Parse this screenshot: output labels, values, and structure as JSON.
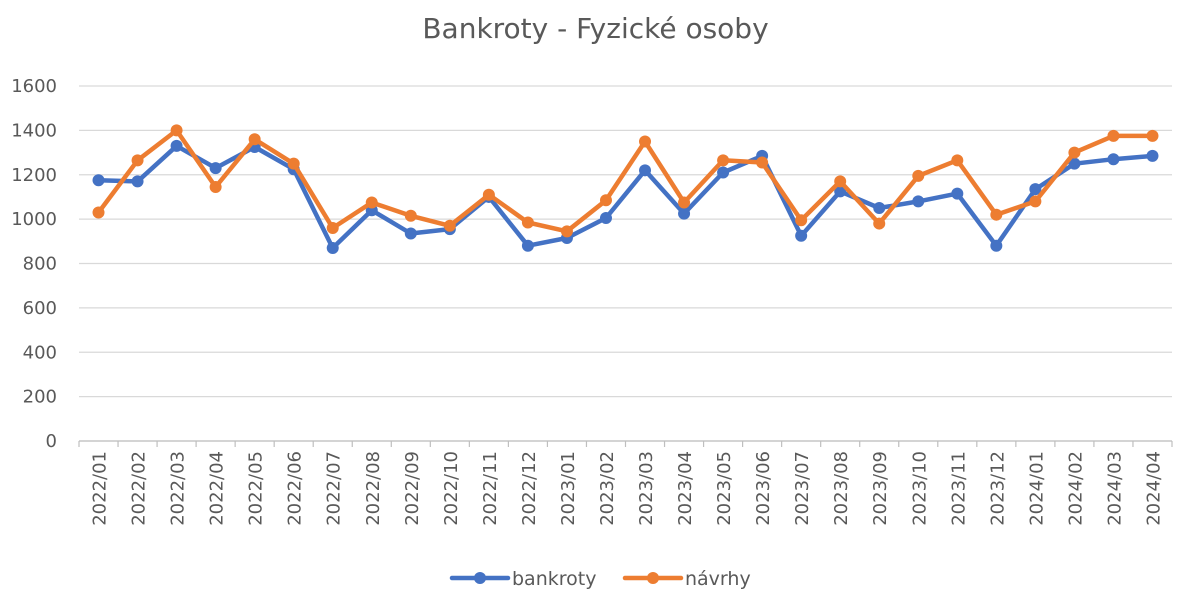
{
  "chart_data": {
    "type": "line",
    "title": "Bankroty - Fyzické osoby",
    "xlabel": "",
    "ylabel": "",
    "ylim": [
      0,
      1600
    ],
    "yticks": [
      0,
      200,
      400,
      600,
      800,
      1000,
      1200,
      1400,
      1600
    ],
    "grid": true,
    "legend_position": "bottom",
    "categories": [
      "2022/01",
      "2022/02",
      "2022/03",
      "2022/04",
      "2022/05",
      "2022/06",
      "2022/07",
      "2022/08",
      "2022/09",
      "2022/10",
      "2022/11",
      "2022/12",
      "2023/01",
      "2023/02",
      "2023/03",
      "2023/04",
      "2023/05",
      "2023/06",
      "2023/07",
      "2023/08",
      "2023/09",
      "2023/10",
      "2023/11",
      "2023/12",
      "2024/01",
      "2024/02",
      "2024/03",
      "2024/04"
    ],
    "series": [
      {
        "name": "bankroty",
        "color": "#4472C4",
        "values": [
          1175,
          1170,
          1330,
          1230,
          1325,
          1225,
          870,
          1040,
          935,
          955,
          1100,
          880,
          915,
          1005,
          1220,
          1025,
          1210,
          1285,
          925,
          1125,
          1050,
          1080,
          1115,
          880,
          1135,
          1250,
          1270,
          1285
        ]
      },
      {
        "name": "návrhy",
        "color": "#ED7D31",
        "values": [
          1030,
          1265,
          1400,
          1145,
          1360,
          1250,
          960,
          1075,
          1015,
          970,
          1110,
          985,
          945,
          1085,
          1350,
          1075,
          1265,
          1255,
          995,
          1170,
          980,
          1195,
          1265,
          1020,
          1080,
          1300,
          1375,
          1375
        ]
      }
    ]
  }
}
